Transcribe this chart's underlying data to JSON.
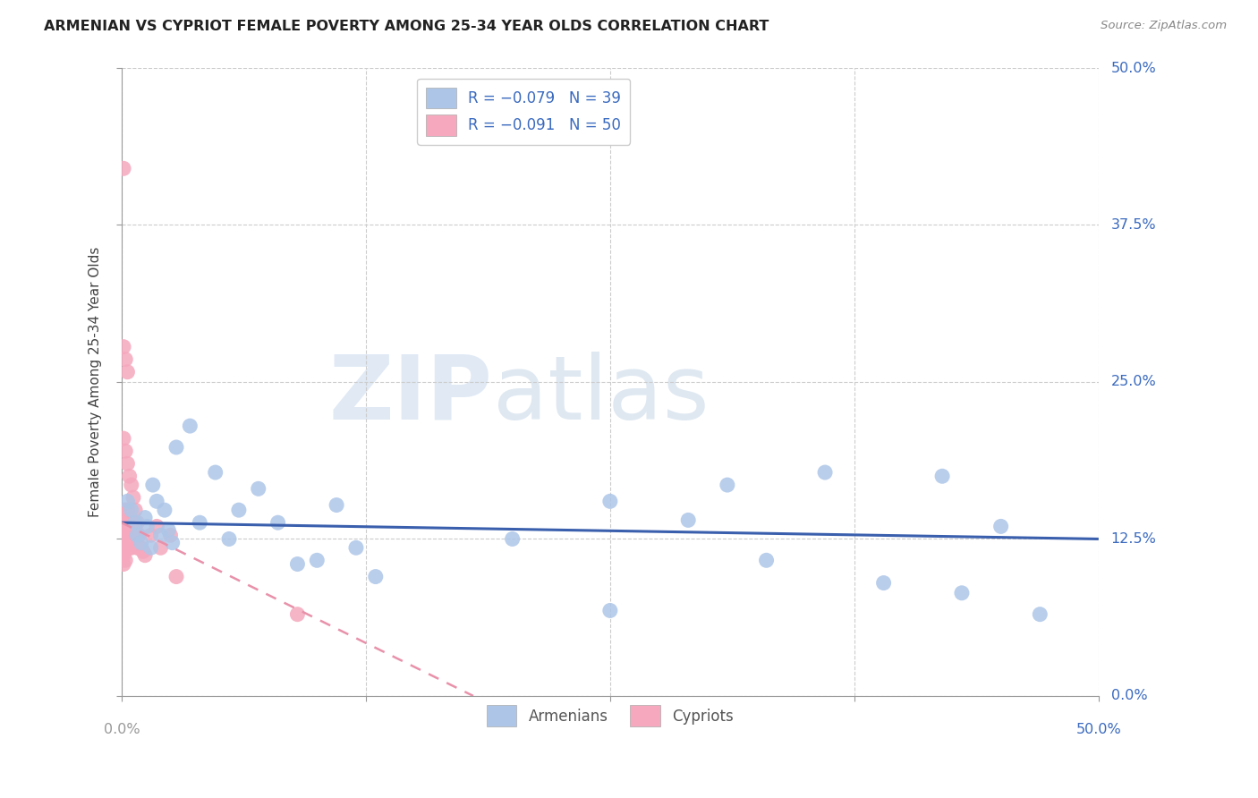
{
  "title": "ARMENIAN VS CYPRIOT FEMALE POVERTY AMONG 25-34 YEAR OLDS CORRELATION CHART",
  "source": "Source: ZipAtlas.com",
  "ylabel": "Female Poverty Among 25-34 Year Olds",
  "xlim": [
    0.0,
    0.5
  ],
  "ylim": [
    0.0,
    0.5
  ],
  "ytick_values": [
    0.0,
    0.125,
    0.25,
    0.375,
    0.5
  ],
  "xtick_values": [
    0.0,
    0.125,
    0.25,
    0.375,
    0.5
  ],
  "armenian_color": "#adc6e8",
  "cypriot_color": "#f5a8be",
  "armenian_line_color": "#3a5fad",
  "cypriot_line_color": "#e891aa",
  "armenian_x": [
    0.003,
    0.005,
    0.007,
    0.008,
    0.01,
    0.012,
    0.013,
    0.015,
    0.016,
    0.018,
    0.02,
    0.022,
    0.024,
    0.026,
    0.028,
    0.035,
    0.04,
    0.048,
    0.055,
    0.06,
    0.07,
    0.08,
    0.09,
    0.1,
    0.11,
    0.12,
    0.13,
    0.2,
    0.25,
    0.31,
    0.36,
    0.39,
    0.43,
    0.45,
    0.47,
    0.25,
    0.29,
    0.33,
    0.42
  ],
  "armenian_y": [
    0.155,
    0.148,
    0.138,
    0.128,
    0.122,
    0.142,
    0.135,
    0.118,
    0.168,
    0.155,
    0.128,
    0.148,
    0.132,
    0.122,
    0.198,
    0.215,
    0.138,
    0.178,
    0.125,
    0.148,
    0.165,
    0.138,
    0.105,
    0.108,
    0.152,
    0.118,
    0.095,
    0.125,
    0.068,
    0.168,
    0.178,
    0.09,
    0.082,
    0.135,
    0.065,
    0.155,
    0.14,
    0.108,
    0.175
  ],
  "cypriot_x": [
    0.001,
    0.001,
    0.001,
    0.001,
    0.001,
    0.001,
    0.001,
    0.002,
    0.002,
    0.002,
    0.002,
    0.002,
    0.003,
    0.003,
    0.003,
    0.003,
    0.004,
    0.004,
    0.004,
    0.005,
    0.005,
    0.005,
    0.006,
    0.006,
    0.007,
    0.007,
    0.008,
    0.008,
    0.009,
    0.009,
    0.01,
    0.011,
    0.012,
    0.015,
    0.018,
    0.02,
    0.025,
    0.028,
    0.001,
    0.002,
    0.003,
    0.001,
    0.002,
    0.003,
    0.004,
    0.005,
    0.006,
    0.007,
    0.008,
    0.09
  ],
  "cypriot_y": [
    0.42,
    0.138,
    0.13,
    0.122,
    0.118,
    0.112,
    0.105,
    0.148,
    0.138,
    0.128,
    0.118,
    0.108,
    0.148,
    0.138,
    0.128,
    0.118,
    0.138,
    0.128,
    0.118,
    0.138,
    0.128,
    0.118,
    0.138,
    0.128,
    0.132,
    0.122,
    0.128,
    0.118,
    0.128,
    0.118,
    0.118,
    0.115,
    0.112,
    0.128,
    0.135,
    0.118,
    0.128,
    0.095,
    0.278,
    0.268,
    0.258,
    0.205,
    0.195,
    0.185,
    0.175,
    0.168,
    0.158,
    0.148,
    0.138,
    0.065
  ]
}
